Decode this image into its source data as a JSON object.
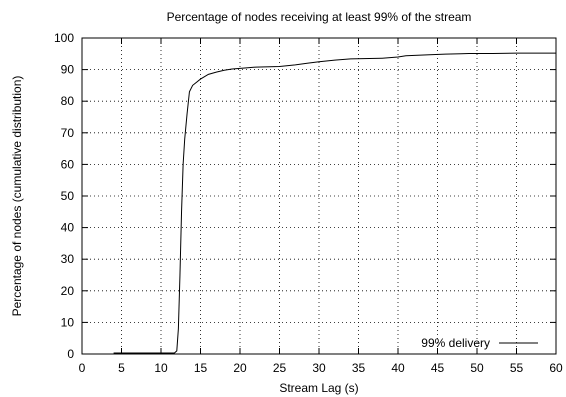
{
  "chart_data": {
    "type": "line",
    "title": "Percentage of nodes receiving at least 99% of the stream",
    "xlabel": "Stream Lag (s)",
    "ylabel": "Percentage of nodes (cumulative distribution)",
    "xlim": [
      0,
      60
    ],
    "ylim": [
      0,
      100
    ],
    "xticks": [
      0,
      5,
      10,
      15,
      20,
      25,
      30,
      35,
      40,
      45,
      50,
      55,
      60
    ],
    "yticks": [
      0,
      10,
      20,
      30,
      40,
      50,
      60,
      70,
      80,
      90,
      100
    ],
    "grid": true,
    "legend_position": "bottom-right",
    "series": [
      {
        "name": "99% delivery",
        "x": [
          4,
          11.7,
          12.0,
          12.2,
          12.4,
          12.6,
          12.8,
          13.0,
          13.3,
          13.6,
          14.0,
          14.5,
          15.0,
          16.0,
          17.0,
          18.0,
          19.0,
          20.0,
          21.0,
          22.0,
          25.0,
          27.0,
          28.5,
          30.0,
          32.0,
          34.0,
          38.0,
          40.0,
          41.0,
          44.0,
          46.0,
          48.0,
          49.0,
          52.0,
          55.0,
          60.0
        ],
        "y": [
          0.3,
          0.3,
          1,
          8,
          25,
          45,
          60,
          68,
          76,
          83,
          85,
          86,
          87,
          88.5,
          89.2,
          89.8,
          90.2,
          90.4,
          90.6,
          90.8,
          91.0,
          91.5,
          92.0,
          92.5,
          93.0,
          93.4,
          93.6,
          94.0,
          94.4,
          94.7,
          94.9,
          95.0,
          95.1,
          95.1,
          95.2,
          95.2
        ]
      }
    ]
  }
}
